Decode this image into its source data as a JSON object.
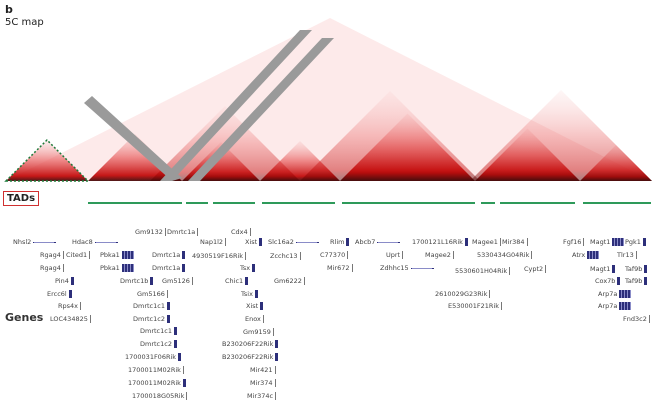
{
  "panel_letter": "b",
  "map_title": "5C map",
  "tads_label": "TADs",
  "genes_label": "Genes",
  "colors": {
    "heat_high": "#c00000",
    "heat_low": "#fde8e8",
    "masked": "#999999",
    "tad_line": "#2e9a5a",
    "gene_glyph": "#2d2f7a",
    "tads_box": "#d03030"
  },
  "genes": [
    "Nhsl2",
    "Hdac8",
    "Gm9132",
    "Dmrtc1a",
    "Nap1l2",
    "Cdx4",
    "Xist",
    "Slc16a2",
    "Rlim",
    "Abcb7",
    "1700121L16Rik",
    "Magee1",
    "Mir384",
    "Fgf16",
    "Magt1",
    "Pgk1",
    "Rgag4",
    "Cited1",
    "Pbka1",
    "Dmrtc1a",
    "4930519F16Rik",
    "Zcchc13",
    "C77370",
    "Uprt",
    "Magee2",
    "5330434G04Rik",
    "Atrx",
    "Tlr13",
    "Rgag4",
    "Pbka1",
    "Dmrtc1a",
    "Tsx",
    "Mir672",
    "Zdhhc15",
    "Cypt2",
    "Magt1",
    "Taf9b",
    "Pin4",
    "Dmrtc1b",
    "Gm5126",
    "Chic1",
    "Gm6222",
    "5530601H04Rik",
    "Cox7b",
    "Taf9b",
    "Ercc6l",
    "Gm5166",
    "Tsix",
    "2610029G23Rik",
    "Arp7a",
    "Rps4x",
    "Dmrtc1c1",
    "Xist",
    "E530001F21Rik",
    "Arp7a",
    "LOC434825",
    "Dmrtc1c2",
    "Enox",
    "Fnd3c2",
    "Dmrtc1c1",
    "Gm9159",
    "Dmrtc1c2",
    "B230206F22Rik",
    "1700031F06Rik",
    "B230206F22Rik",
    "1700011M02Rik",
    "Mir421",
    "1700011M02Rik",
    "Mir374",
    "1700018G05Rik",
    "Mir374c"
  ]
}
